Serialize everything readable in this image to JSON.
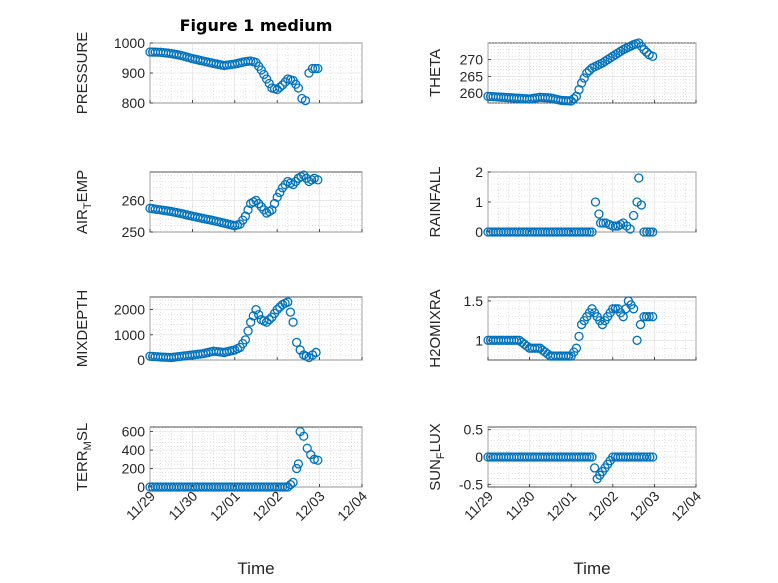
{
  "figure": {
    "marker_color": "#0072bd"
  },
  "chart_data": [
    {
      "type": "scatter",
      "title": "Figure 1 medium",
      "xlabel": "",
      "ylabel": {
        "main": "PRESSURE",
        "sub": "",
        "tail": ""
      },
      "ylim": [
        800,
        1000
      ],
      "yticks": [
        800,
        900,
        1000
      ],
      "xlim": [
        "11/29",
        "12/04"
      ],
      "xticks": [
        "11/29",
        "11/30",
        "12/01",
        "12/02",
        "12/03",
        "12/04"
      ],
      "show_xticklabels": false,
      "grid": true,
      "series": [
        {
          "points": [
            [
              "11/29 00:00",
              970
            ],
            [
              "11/29 06:00",
              969
            ],
            [
              "11/29 12:00",
              965
            ],
            [
              "11/29 18:00",
              958
            ],
            [
              "11/30 00:00",
              948
            ],
            [
              "11/30 06:00",
              940
            ],
            [
              "11/30 12:00",
              932
            ],
            [
              "11/30 18:00",
              925
            ],
            [
              "12/01 00:00",
              930
            ],
            [
              "12/01 06:00",
              938
            ],
            [
              "12/01 09:00",
              940
            ],
            [
              "12/01 12:00",
              935
            ],
            [
              "12/01 15:00",
              910
            ],
            [
              "12/01 18:00",
              880
            ],
            [
              "12/01 21:00",
              850
            ],
            [
              "12/02 00:00",
              845
            ],
            [
              "12/02 03:00",
              860
            ],
            [
              "12/02 06:00",
              880
            ],
            [
              "12/02 09:00",
              875
            ],
            [
              "12/02 12:00",
              850
            ],
            [
              "12/02 14:00",
              815
            ],
            [
              "12/02 16:00",
              808
            ],
            [
              "12/02 18:00",
              900
            ],
            [
              "12/02 20:00",
              915
            ],
            [
              "12/02 23:00",
              915
            ]
          ]
        }
      ]
    },
    {
      "type": "scatter",
      "title": "",
      "xlabel": "",
      "ylabel": {
        "main": "THETA",
        "sub": "",
        "tail": ""
      },
      "ylim": [
        257,
        275
      ],
      "yticks": [
        260,
        265,
        270
      ],
      "xlim": [
        "11/29",
        "12/04"
      ],
      "xticks": [
        "11/29",
        "11/30",
        "12/01",
        "12/02",
        "12/03",
        "12/04"
      ],
      "show_xticklabels": false,
      "grid": true,
      "series": [
        {
          "points": [
            [
              "11/29 00:00",
              259
            ],
            [
              "11/29 12:00",
              258.6
            ],
            [
              "11/30 00:00",
              258.2
            ],
            [
              "11/30 06:00",
              258.7
            ],
            [
              "11/30 12:00",
              258.5
            ],
            [
              "11/30 18:00",
              257.8
            ],
            [
              "12/01 00:00",
              257.6
            ],
            [
              "12/01 03:00",
              259
            ],
            [
              "12/01 06:00",
              263
            ],
            [
              "12/01 09:00",
              266
            ],
            [
              "12/01 12:00",
              267.5
            ],
            [
              "12/01 18:00",
              269
            ],
            [
              "12/02 00:00",
              271
            ],
            [
              "12/02 06:00",
              273
            ],
            [
              "12/02 12:00",
              274.5
            ],
            [
              "12/02 15:00",
              275
            ],
            [
              "12/02 18:00",
              273
            ],
            [
              "12/02 21:00",
              271.5
            ],
            [
              "12/02 23:00",
              271
            ]
          ]
        }
      ]
    },
    {
      "type": "scatter",
      "title": "",
      "xlabel": "",
      "ylabel": {
        "main": "AIR",
        "sub": "T",
        "tail": "EMP"
      },
      "ylim": [
        250,
        269
      ],
      "yticks": [
        250,
        260
      ],
      "xlim": [
        "11/29",
        "12/04"
      ],
      "xticks": [
        "11/29",
        "11/30",
        "12/01",
        "12/02",
        "12/03",
        "12/04"
      ],
      "show_xticklabels": false,
      "grid": true,
      "series": [
        {
          "points": [
            [
              "11/29 00:00",
              257.5
            ],
            [
              "11/29 06:00",
              257
            ],
            [
              "11/29 12:00",
              256.5
            ],
            [
              "11/29 18:00",
              255.8
            ],
            [
              "11/30 00:00",
              255
            ],
            [
              "11/30 06:00",
              254.3
            ],
            [
              "11/30 12:00",
              253.6
            ],
            [
              "11/30 18:00",
              252.8
            ],
            [
              "12/01 00:00",
              252
            ],
            [
              "12/01 03:00",
              252.5
            ],
            [
              "12/01 06:00",
              255
            ],
            [
              "12/01 09:00",
              259
            ],
            [
              "12/01 12:00",
              260
            ],
            [
              "12/01 15:00",
              258
            ],
            [
              "12/01 18:00",
              256
            ],
            [
              "12/01 21:00",
              257
            ],
            [
              "12/02 00:00",
              261
            ],
            [
              "12/02 03:00",
              264
            ],
            [
              "12/02 06:00",
              266
            ],
            [
              "12/02 09:00",
              265
            ],
            [
              "12/02 12:00",
              267
            ],
            [
              "12/02 15:00",
              268
            ],
            [
              "12/02 18:00",
              266
            ],
            [
              "12/02 21:00",
              267
            ],
            [
              "12/02 23:00",
              266.5
            ]
          ]
        }
      ]
    },
    {
      "type": "scatter",
      "title": "",
      "xlabel": "",
      "ylabel": {
        "main": "RAINFALL",
        "sub": "",
        "tail": ""
      },
      "ylim": [
        0,
        2
      ],
      "yticks": [
        0,
        1,
        2
      ],
      "xlim": [
        "11/29",
        "12/04"
      ],
      "xticks": [
        "11/29",
        "11/30",
        "12/01",
        "12/02",
        "12/03",
        "12/04"
      ],
      "show_xticklabels": false,
      "grid": true,
      "series": [
        {
          "points": [
            [
              "11/29 00:00",
              0
            ],
            [
              "11/29 12:00",
              0
            ],
            [
              "11/30 00:00",
              0
            ],
            [
              "11/30 12:00",
              0
            ],
            [
              "12/01 00:00",
              0
            ],
            [
              "12/01 06:00",
              0
            ],
            [
              "12/01 12:00",
              0
            ],
            [
              "12/01 14:00",
              1
            ],
            [
              "12/01 16:00",
              0.6
            ],
            [
              "12/01 17:00",
              0.3
            ],
            [
              "12/01 20:00",
              0.3
            ],
            [
              "12/02 00:00",
              0.2
            ],
            [
              "12/02 03:00",
              0.2
            ],
            [
              "12/02 06:00",
              0.3
            ],
            [
              "12/02 10:00",
              0.1
            ],
            [
              "12/02 14:00",
              1
            ],
            [
              "12/02 15:00",
              1.8
            ],
            [
              "12/02 18:00",
              0
            ],
            [
              "12/02 23:00",
              0
            ]
          ]
        }
      ]
    },
    {
      "type": "scatter",
      "title": "",
      "xlabel": "",
      "ylabel": {
        "main": "MIXDEPTH",
        "sub": "",
        "tail": ""
      },
      "ylim": [
        0,
        2500
      ],
      "yticks": [
        0,
        1000,
        2000
      ],
      "xlim": [
        "11/29",
        "12/04"
      ],
      "xticks": [
        "11/29",
        "11/30",
        "12/01",
        "12/02",
        "12/03",
        "12/04"
      ],
      "show_xticklabels": false,
      "grid": true,
      "series": [
        {
          "points": [
            [
              "11/29 00:00",
              150
            ],
            [
              "11/29 06:00",
              120
            ],
            [
              "11/29 12:00",
              100
            ],
            [
              "11/29 18:00",
              150
            ],
            [
              "11/30 00:00",
              200
            ],
            [
              "11/30 06:00",
              250
            ],
            [
              "11/30 12:00",
              350
            ],
            [
              "11/30 18:00",
              300
            ],
            [
              "12/01 00:00",
              400
            ],
            [
              "12/01 03:00",
              500
            ],
            [
              "12/01 06:00",
              800
            ],
            [
              "12/01 09:00",
              1500
            ],
            [
              "12/01 12:00",
              2000
            ],
            [
              "12/01 15:00",
              1600
            ],
            [
              "12/01 18:00",
              1500
            ],
            [
              "12/01 21:00",
              1700
            ],
            [
              "12/02 00:00",
              2000
            ],
            [
              "12/02 03:00",
              2200
            ],
            [
              "12/02 06:00",
              2300
            ],
            [
              "12/02 09:00",
              1500
            ],
            [
              "12/02 11:00",
              700
            ],
            [
              "12/02 13:00",
              400
            ],
            [
              "12/02 15:00",
              200
            ],
            [
              "12/02 18:00",
              100
            ],
            [
              "12/02 22:00",
              300
            ]
          ]
        }
      ]
    },
    {
      "type": "scatter",
      "title": "",
      "xlabel": "",
      "ylabel": {
        "main": "H2OMIXRA",
        "sub": "",
        "tail": ""
      },
      "ylim": [
        0.75,
        1.55
      ],
      "yticks": [
        1,
        1.5
      ],
      "xlim": [
        "11/29",
        "12/04"
      ],
      "xticks": [
        "11/29",
        "11/30",
        "12/01",
        "12/02",
        "12/03",
        "12/04"
      ],
      "show_xticklabels": false,
      "grid": true,
      "series": [
        {
          "points": [
            [
              "11/29 00:00",
              1
            ],
            [
              "11/29 12:00",
              1
            ],
            [
              "11/29 18:00",
              1
            ],
            [
              "11/30 00:00",
              0.9
            ],
            [
              "11/30 06:00",
              0.9
            ],
            [
              "11/30 12:00",
              0.8
            ],
            [
              "11/30 18:00",
              0.8
            ],
            [
              "12/01 00:00",
              0.8
            ],
            [
              "12/01 03:00",
              0.9
            ],
            [
              "12/01 06:00",
              1.2
            ],
            [
              "12/01 09:00",
              1.3
            ],
            [
              "12/01 12:00",
              1.4
            ],
            [
              "12/01 15:00",
              1.3
            ],
            [
              "12/01 18:00",
              1.2
            ],
            [
              "12/01 21:00",
              1.3
            ],
            [
              "12/02 00:00",
              1.4
            ],
            [
              "12/02 03:00",
              1.4
            ],
            [
              "12/02 06:00",
              1.3
            ],
            [
              "12/02 09:00",
              1.5
            ],
            [
              "12/02 12:00",
              1.4
            ],
            [
              "12/02 14:00",
              1
            ],
            [
              "12/02 16:00",
              1.2
            ],
            [
              "12/02 18:00",
              1.3
            ],
            [
              "12/02 21:00",
              1.3
            ],
            [
              "12/02 23:00",
              1.3
            ]
          ]
        }
      ]
    },
    {
      "type": "scatter",
      "title": "",
      "xlabel": "Time",
      "ylabel": {
        "main": "TERR",
        "sub": "M",
        "tail": "SL"
      },
      "ylim": [
        0,
        650
      ],
      "yticks": [
        0,
        200,
        400,
        600
      ],
      "xlim": [
        "11/29",
        "12/04"
      ],
      "xticks": [
        "11/29",
        "11/30",
        "12/01",
        "12/02",
        "12/03",
        "12/04"
      ],
      "show_xticklabels": true,
      "grid": true,
      "series": [
        {
          "points": [
            [
              "11/29 00:00",
              0
            ],
            [
              "11/29 12:00",
              0
            ],
            [
              "11/30 00:00",
              0
            ],
            [
              "11/30 12:00",
              0
            ],
            [
              "12/01 00:00",
              0
            ],
            [
              "12/01 12:00",
              0
            ],
            [
              "12/02 00:00",
              0
            ],
            [
              "12/02 06:00",
              0
            ],
            [
              "12/02 09:00",
              50
            ],
            [
              "12/02 11:00",
              200
            ],
            [
              "12/02 12:00",
              250
            ],
            [
              "12/02 13:00",
              600
            ],
            [
              "12/02 15:00",
              550
            ],
            [
              "12/02 17:00",
              420
            ],
            [
              "12/02 19:00",
              350
            ],
            [
              "12/02 21:00",
              300
            ],
            [
              "12/02 23:00",
              290
            ]
          ]
        }
      ]
    },
    {
      "type": "scatter",
      "title": "",
      "xlabel": "Time",
      "ylabel": {
        "main": "SUN",
        "sub": "F",
        "tail": "LUX"
      },
      "ylim": [
        -0.55,
        0.55
      ],
      "yticks": [
        -0.5,
        0,
        0.5
      ],
      "xlim": [
        "11/29",
        "12/04"
      ],
      "xticks": [
        "11/29",
        "11/30",
        "12/01",
        "12/02",
        "12/03",
        "12/04"
      ],
      "show_xticklabels": true,
      "grid": true,
      "series": [
        {
          "points": [
            [
              "11/29 00:00",
              0
            ],
            [
              "11/29 12:00",
              0
            ],
            [
              "11/30 00:00",
              0
            ],
            [
              "11/30 12:00",
              0
            ],
            [
              "12/01 00:00",
              0
            ],
            [
              "12/01 12:00",
              0
            ],
            [
              "12/01 15:00",
              -0.4
            ],
            [
              "12/02 00:00",
              0
            ],
            [
              "12/02 06:00",
              0
            ],
            [
              "12/02 12:00",
              0
            ],
            [
              "12/02 18:00",
              0
            ],
            [
              "12/02 23:00",
              0
            ]
          ]
        }
      ]
    }
  ]
}
